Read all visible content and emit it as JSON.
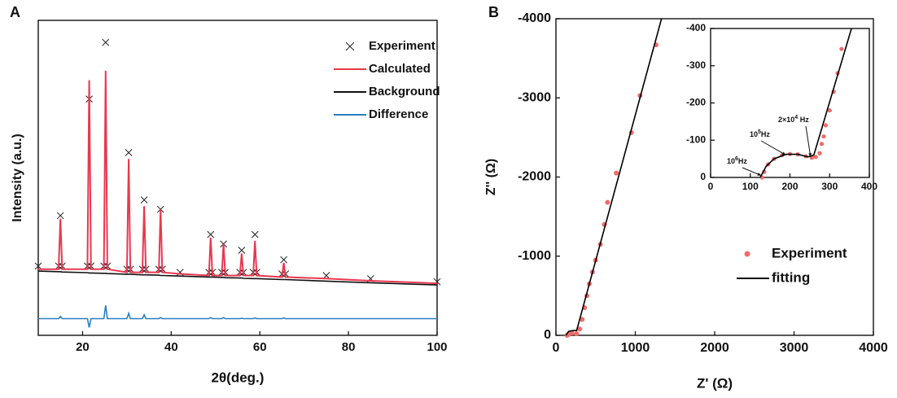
{
  "chart_data": [
    {
      "type": "line",
      "panel": "A",
      "xlabel": "2θ(deg.)",
      "ylabel": "Intensity (a.u.)",
      "xlim": [
        10,
        100
      ],
      "ylim": [
        0,
        100
      ],
      "xticks": [
        20,
        40,
        60,
        80,
        100
      ],
      "legend": "upper right",
      "x": [
        10,
        14.6,
        15,
        15.4,
        21.1,
        21.5,
        21.9,
        24.8,
        25.2,
        25.6,
        30,
        30.4,
        30.8,
        33.5,
        33.9,
        34.3,
        37.2,
        37.6,
        38,
        42,
        48.5,
        48.9,
        49.3,
        51.4,
        51.8,
        52.2,
        55.5,
        55.9,
        56.3,
        58.5,
        58.9,
        59.3,
        65,
        65.4,
        65.8,
        75,
        85,
        100
      ],
      "series": [
        {
          "name": "Experiment",
          "color": "#222222",
          "marker": "x",
          "values": [
            22,
            22,
            38,
            22,
            22,
            75,
            22,
            22,
            93,
            22,
            21,
            58,
            21,
            21,
            43,
            21,
            21,
            40,
            21,
            20,
            20,
            32,
            20,
            20,
            29,
            20,
            20,
            27,
            20,
            20,
            32,
            20,
            19.5,
            24,
            19.5,
            19,
            18,
            17
          ]
        },
        {
          "name": "Calculated",
          "color": "#e8384f",
          "marker": "line",
          "values": [
            21,
            21,
            37,
            21,
            21,
            81,
            21,
            21,
            84,
            21,
            20,
            56,
            20,
            20,
            41,
            20,
            20,
            40,
            20,
            19.5,
            19,
            31,
            19,
            19,
            29,
            19,
            19,
            26,
            19,
            19,
            30,
            19,
            18.5,
            23,
            18.5,
            18,
            17.3,
            16.5
          ]
        },
        {
          "name": "Background",
          "color": "#111111",
          "marker": "line",
          "values": [
            20.4,
            20.2,
            20.2,
            20.1,
            19.9,
            19.8,
            19.8,
            19.7,
            19.7,
            19.6,
            19.4,
            19.4,
            19.4,
            19.2,
            19.2,
            19.2,
            19.1,
            19,
            19,
            18.8,
            18.5,
            18.5,
            18.5,
            18.4,
            18.4,
            18.3,
            18.2,
            18.2,
            18.1,
            18,
            18,
            18,
            17.7,
            17.7,
            17.7,
            17.2,
            16.7,
            16
          ]
        },
        {
          "name": "Difference",
          "color": "#2a7fc1",
          "marker": "line",
          "values": [
            5.3,
            5.3,
            6,
            5.3,
            5.3,
            2.5,
            5.3,
            5.3,
            9.5,
            5.3,
            5.3,
            7,
            5.3,
            5.3,
            6.5,
            5.3,
            5.3,
            5.6,
            5.3,
            5.3,
            5.3,
            5.6,
            5.3,
            5.3,
            5.6,
            5.3,
            5.3,
            5.4,
            5.3,
            5.3,
            5.5,
            5.3,
            5.3,
            5.5,
            5.3,
            5.3,
            5.3,
            5.3
          ]
        }
      ]
    },
    {
      "type": "line",
      "panel": "B",
      "xlabel": "Z' (Ω)",
      "ylabel": "Z'' (Ω)",
      "xlim": [
        0,
        4000
      ],
      "ylim": [
        0,
        -4000
      ],
      "xticks": [
        0,
        1000,
        2000,
        3000,
        4000
      ],
      "yticks": [
        0,
        -1000,
        -2000,
        -3000,
        -4000
      ],
      "legend": "lower right",
      "series": [
        {
          "name": "Experiment",
          "color": "#f06a6a",
          "marker": "circle",
          "x": [
            140,
            160,
            200,
            260,
            300,
            330,
            360,
            390,
            420,
            460,
            500,
            560,
            610,
            650,
            760,
            950,
            1060,
            1260
          ],
          "values": [
            0,
            -10,
            -30,
            -20,
            -80,
            -200,
            -350,
            -500,
            -650,
            -800,
            -950,
            -1150,
            -1400,
            -1680,
            -2050,
            -2560,
            -3030,
            -3670
          ]
        },
        {
          "name": "fitting",
          "color": "#000000",
          "marker": "line",
          "x": [
            125,
            160,
            220,
            260,
            1330
          ],
          "values": [
            0,
            -50,
            -62,
            -60,
            -4000
          ]
        }
      ]
    },
    {
      "type": "line",
      "xlim": [
        0,
        400
      ],
      "ylim": [
        0,
        -400
      ],
      "xticks": [
        0,
        100,
        200,
        300,
        400
      ],
      "yticks": [
        0,
        -100,
        -200,
        -300,
        -400
      ],
      "annotations": [
        {
          "base": "10",
          "exp": "6",
          "unit": "Hz"
        },
        {
          "base": "10",
          "exp": "5",
          "unit": "Hz"
        },
        {
          "base": "2×10",
          "exp": "4",
          "unit": " Hz"
        }
      ],
      "series": [
        {
          "color": "#f06a6a",
          "marker": "circle",
          "x": [
            130,
            135,
            145,
            160,
            180,
            200,
            220,
            240,
            255,
            265,
            275,
            280,
            285,
            290,
            300,
            310,
            320,
            330
          ],
          "values": [
            0,
            -15,
            -35,
            -50,
            -60,
            -63,
            -62,
            -57,
            -53,
            -55,
            -65,
            -90,
            -110,
            -140,
            -180,
            -230,
            -280,
            -345
          ]
        },
        {
          "color": "#000000",
          "marker": "line",
          "x": [
            125,
            140,
            160,
            190,
            220,
            245,
            260,
            355
          ],
          "values": [
            0,
            -30,
            -50,
            -62,
            -62,
            -55,
            -60,
            -400
          ]
        }
      ]
    }
  ]
}
